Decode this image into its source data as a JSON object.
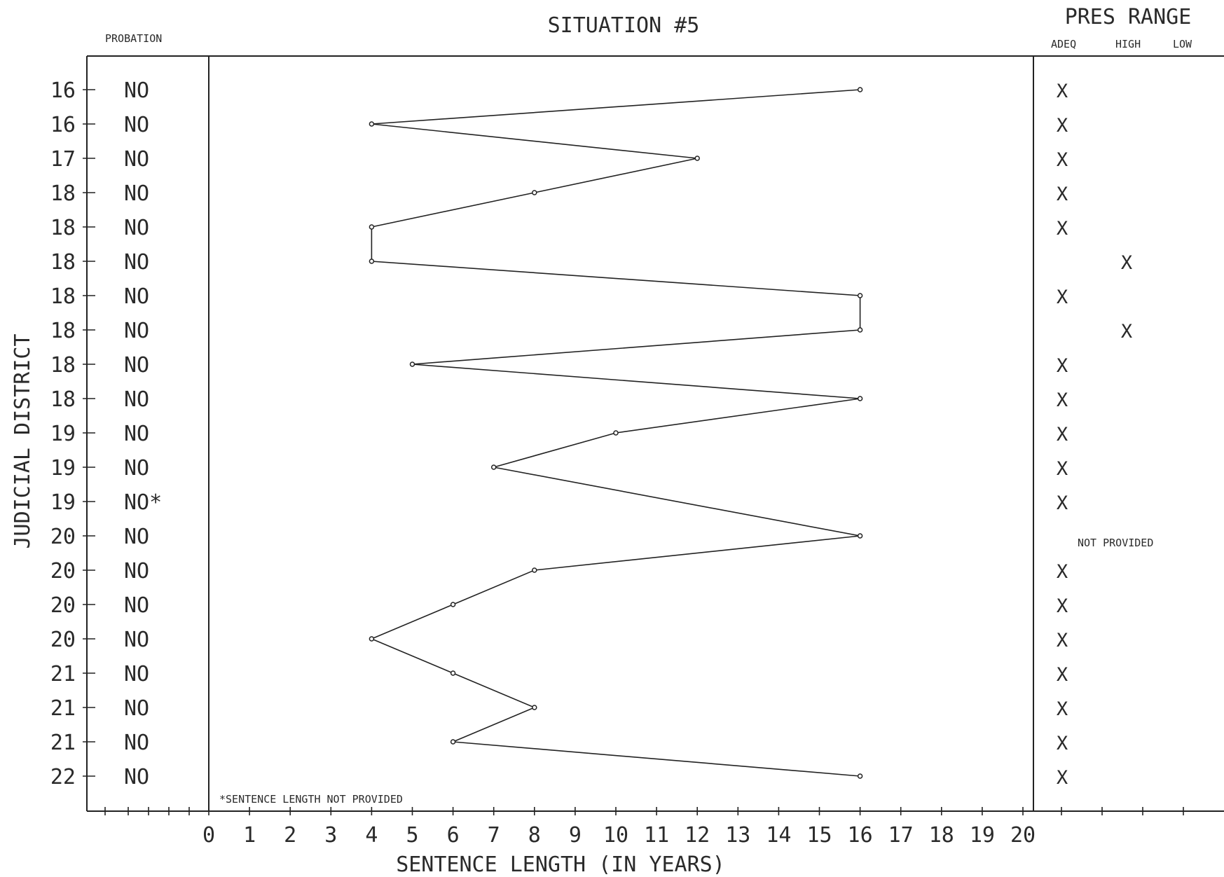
{
  "chart_data": {
    "type": "line",
    "title": "SITUATION #5",
    "xlabel": "SENTENCE LENGTH (IN YEARS)",
    "ylabel": "JUDICIAL DISTRICT",
    "xlim": [
      0,
      20
    ],
    "x_ticks": [
      "0",
      "1",
      "2",
      "3",
      "4",
      "5",
      "6",
      "7",
      "8",
      "9",
      "10",
      "11",
      "12",
      "13",
      "14",
      "15",
      "16",
      "17",
      "18",
      "19",
      "20"
    ],
    "probation_header": "PROBATION",
    "pres_range_header": "PRES RANGE",
    "pres_range_columns": [
      "ADEQ",
      "HIGH",
      "LOW"
    ],
    "footnote": "*SENTENCE LENGTH NOT PROVIDED",
    "not_provided_text": "NOT PROVIDED",
    "mark": "X",
    "rows": [
      {
        "district": "16",
        "probation": "NO",
        "sentence": 16,
        "pres_range": "ADEQ"
      },
      {
        "district": "16",
        "probation": "NO",
        "sentence": 4,
        "pres_range": "ADEQ"
      },
      {
        "district": "17",
        "probation": "NO",
        "sentence": 12,
        "pres_range": "ADEQ"
      },
      {
        "district": "18",
        "probation": "NO",
        "sentence": 8,
        "pres_range": "ADEQ"
      },
      {
        "district": "18",
        "probation": "NO",
        "sentence": 4,
        "pres_range": "ADEQ"
      },
      {
        "district": "18",
        "probation": "NO",
        "sentence": 4,
        "pres_range": "HIGH"
      },
      {
        "district": "18",
        "probation": "NO",
        "sentence": 16,
        "pres_range": "ADEQ"
      },
      {
        "district": "18",
        "probation": "NO",
        "sentence": 16,
        "pres_range": "HIGH"
      },
      {
        "district": "18",
        "probation": "NO",
        "sentence": 5,
        "pres_range": "ADEQ"
      },
      {
        "district": "18",
        "probation": "NO",
        "sentence": 16,
        "pres_range": "ADEQ"
      },
      {
        "district": "19",
        "probation": "NO",
        "sentence": 10,
        "pres_range": "ADEQ"
      },
      {
        "district": "19",
        "probation": "NO",
        "sentence": 7,
        "pres_range": "ADEQ"
      },
      {
        "district": "19",
        "probation": "NO*",
        "sentence": null,
        "pres_range": "ADEQ"
      },
      {
        "district": "20",
        "probation": "NO",
        "sentence": 16,
        "pres_range": "NOT PROVIDED"
      },
      {
        "district": "20",
        "probation": "NO",
        "sentence": 8,
        "pres_range": "ADEQ"
      },
      {
        "district": "20",
        "probation": "NO",
        "sentence": 6,
        "pres_range": "ADEQ"
      },
      {
        "district": "20",
        "probation": "NO",
        "sentence": 4,
        "pres_range": "ADEQ"
      },
      {
        "district": "21",
        "probation": "NO",
        "sentence": 6,
        "pres_range": "ADEQ"
      },
      {
        "district": "21",
        "probation": "NO",
        "sentence": 8,
        "pres_range": "ADEQ"
      },
      {
        "district": "21",
        "probation": "NO",
        "sentence": 6,
        "pres_range": "ADEQ"
      },
      {
        "district": "22",
        "probation": "NO",
        "sentence": 16,
        "pres_range": "ADEQ"
      }
    ]
  }
}
